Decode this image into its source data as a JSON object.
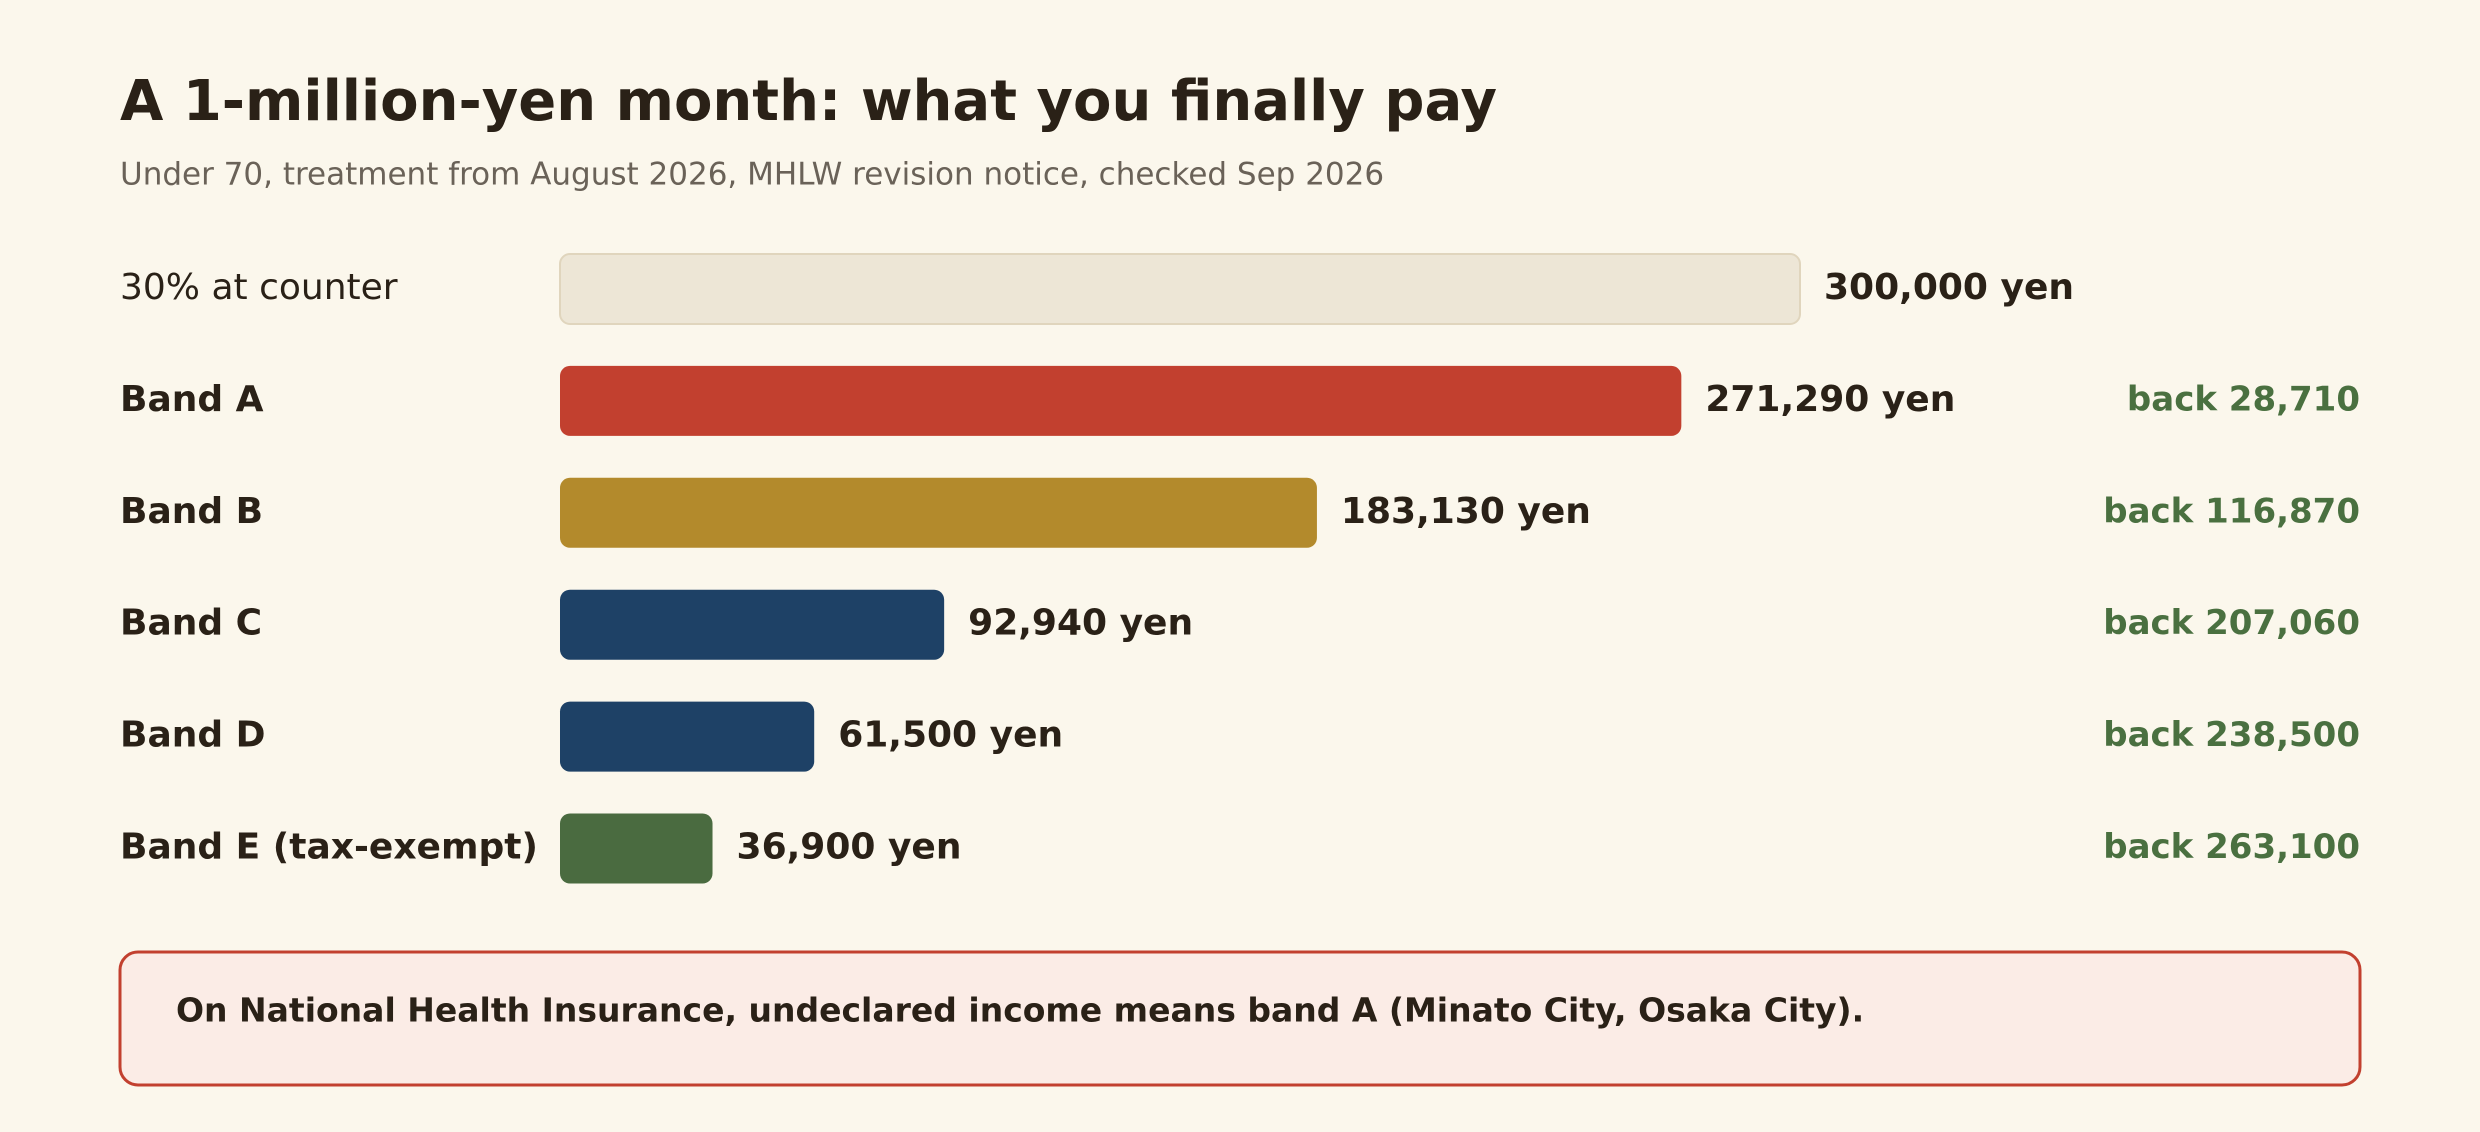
{
  "chart_data": {
    "type": "hbar",
    "title": "A 1-million-yen month: what you finally pay",
    "subtitle": "Under 70, treatment from August 2026, MHLW revision notice, checked Sep 2026",
    "categories": [
      "30% at counter",
      "Band A",
      "Band B",
      "Band C",
      "Band D",
      "Band E (tax-exempt)"
    ],
    "values": [
      300000,
      271290,
      183130,
      92940,
      61500,
      36900
    ],
    "value_labels": [
      "300,000 yen",
      "271,290 yen",
      "183,130 yen",
      "92,940 yen",
      "61,500 yen",
      "36,900 yen"
    ],
    "colors": [
      "#ede6d6",
      "#c2402f",
      "#b38a2c",
      "#1e4166",
      "#1e4166",
      "#4a6b40"
    ],
    "refunds": [
      null,
      28710,
      116870,
      207060,
      238500,
      263100
    ],
    "refund_labels": [
      null,
      "back 28,710",
      "back 116,870",
      "back 207,060",
      "back 238,500",
      "back 263,100"
    ],
    "note": "On National Health Insurance, undeclared income means band A (Minato City, Osaka City)."
  }
}
